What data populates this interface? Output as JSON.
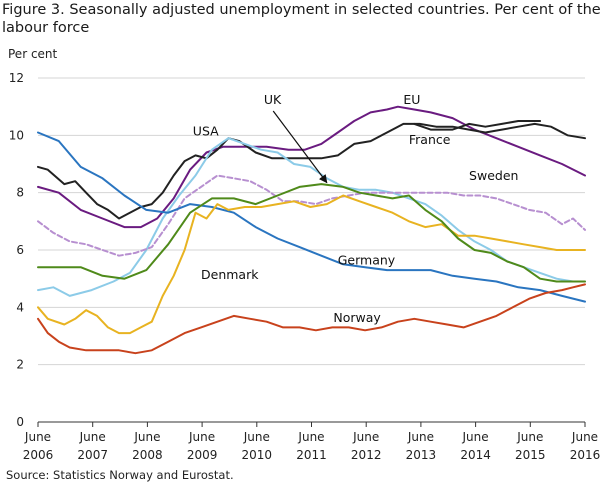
{
  "title": "Figure 3. Seasonally adjusted unemployment in selected countries. Per cent of the labour force",
  "source": "Source: Statistics Norway and Eurostat.",
  "chart_data": {
    "type": "line",
    "ylabel": "Per cent",
    "ylim": [
      0,
      12
    ],
    "yticks": [
      0,
      2,
      4,
      6,
      8,
      10,
      12
    ],
    "xlim": [
      2006.42,
      2016.42
    ],
    "xticks": [
      {
        "x": 2006.42,
        "month": "June",
        "year": "2006"
      },
      {
        "x": 2007.42,
        "month": "June",
        "year": "2007"
      },
      {
        "x": 2008.42,
        "month": "June",
        "year": "2008"
      },
      {
        "x": 2009.42,
        "month": "June",
        "year": "2009"
      },
      {
        "x": 2010.42,
        "month": "June",
        "year": "2010"
      },
      {
        "x": 2011.42,
        "month": "June",
        "year": "2011"
      },
      {
        "x": 2012.42,
        "month": "June",
        "year": "2012"
      },
      {
        "x": 2013.42,
        "month": "June",
        "year": "2013"
      },
      {
        "x": 2014.42,
        "month": "June",
        "year": "2014"
      },
      {
        "x": 2015.42,
        "month": "June",
        "year": "2015"
      },
      {
        "x": 2016.42,
        "month": "June",
        "year": "2016"
      }
    ],
    "grid": "horizontal",
    "series": [
      {
        "name": "EU",
        "color": "#6a1b80",
        "dashed": false,
        "x": [
          2006.42,
          2006.8,
          2007.2,
          2007.6,
          2008.0,
          2008.3,
          2008.6,
          2008.9,
          2009.2,
          2009.5,
          2009.8,
          2010.2,
          2010.6,
          2011.0,
          2011.3,
          2011.6,
          2011.9,
          2012.2,
          2012.5,
          2012.8,
          2013.0,
          2013.3,
          2013.6,
          2014.0,
          2014.4,
          2014.8,
          2015.2,
          2015.6,
          2016.0,
          2016.42
        ],
        "y": [
          8.2,
          8.0,
          7.4,
          7.1,
          6.8,
          6.8,
          7.1,
          7.8,
          8.8,
          9.4,
          9.6,
          9.6,
          9.6,
          9.5,
          9.5,
          9.7,
          10.1,
          10.5,
          10.8,
          10.9,
          11.0,
          10.9,
          10.8,
          10.6,
          10.2,
          9.9,
          9.6,
          9.3,
          9.0,
          8.6
        ]
      },
      {
        "name": "USA",
        "color": "#222222",
        "dashed": false,
        "x": [
          2006.42,
          2006.6,
          2006.9,
          2007.1,
          2007.3,
          2007.5,
          2007.7,
          2007.9,
          2008.1,
          2008.3,
          2008.5,
          2008.7,
          2008.9,
          2009.1,
          2009.3,
          2009.5,
          2009.7,
          2009.9,
          2010.1,
          2010.4,
          2010.7,
          2011.0,
          2011.3,
          2011.6,
          2011.9,
          2012.2,
          2012.5,
          2012.8,
          2013.1,
          2013.4,
          2013.7,
          2014.0,
          2014.3,
          2014.6,
          2014.9,
          2015.2,
          2015.5,
          2015.8,
          2016.1,
          2016.42
        ],
        "y": [
          8.9,
          8.8,
          8.3,
          8.4,
          8.0,
          7.6,
          7.4,
          7.1,
          7.3,
          7.5,
          7.6,
          8.0,
          8.6,
          9.1,
          9.3,
          9.2,
          9.5,
          9.9,
          9.8,
          9.4,
          9.2,
          9.2,
          9.2,
          9.2,
          9.3,
          9.7,
          9.8,
          10.1,
          10.4,
          10.4,
          10.3,
          10.3,
          10.2,
          10.1,
          10.2,
          10.3,
          10.4,
          10.3,
          10.0,
          9.9
        ]
      },
      {
        "name": "France",
        "color": "#222222",
        "dashed": false,
        "x": [
          2013.3,
          2013.6,
          2014.0,
          2014.3,
          2014.6,
          2014.9,
          2015.2,
          2015.6
        ],
        "y": [
          10.4,
          10.2,
          10.2,
          10.4,
          10.3,
          10.4,
          10.5,
          10.5
        ]
      },
      {
        "name": "UK",
        "color": "#8ccbe8",
        "dashed": false,
        "x": [
          2006.42,
          2006.7,
          2007.0,
          2007.4,
          2007.8,
          2008.1,
          2008.4,
          2008.7,
          2009.0,
          2009.3,
          2009.6,
          2009.9,
          2010.2,
          2010.5,
          2010.8,
          2011.1,
          2011.4,
          2011.7,
          2012.0,
          2012.3,
          2012.6,
          2012.9,
          2013.2,
          2013.5,
          2013.8,
          2014.1,
          2014.4,
          2014.7,
          2015.0,
          2015.3,
          2015.6,
          2015.9,
          2016.2,
          2016.42
        ],
        "y": [
          4.6,
          4.7,
          4.4,
          4.6,
          4.9,
          5.2,
          6.0,
          7.1,
          7.9,
          8.6,
          9.5,
          9.9,
          9.7,
          9.5,
          9.4,
          9.0,
          8.9,
          8.5,
          8.2,
          8.1,
          8.1,
          8.0,
          7.8,
          7.6,
          7.2,
          6.7,
          6.3,
          6.0,
          5.6,
          5.4,
          5.2,
          5.0,
          4.9,
          4.9
        ]
      },
      {
        "name": "Sweden",
        "color": "#b78fd0",
        "dashed": true,
        "x": [
          2006.42,
          2006.7,
          2007.0,
          2007.3,
          2007.6,
          2007.9,
          2008.2,
          2008.5,
          2008.8,
          2009.1,
          2009.4,
          2009.7,
          2010.0,
          2010.3,
          2010.6,
          2010.9,
          2011.2,
          2011.5,
          2011.8,
          2012.1,
          2012.4,
          2012.7,
          2013.0,
          2013.3,
          2013.6,
          2013.9,
          2014.2,
          2014.5,
          2014.8,
          2015.1,
          2015.4,
          2015.7,
          2016.0,
          2016.2,
          2016.42
        ],
        "y": [
          7.0,
          6.6,
          6.3,
          6.2,
          6.0,
          5.8,
          5.9,
          6.1,
          6.9,
          7.8,
          8.2,
          8.6,
          8.5,
          8.4,
          8.1,
          7.7,
          7.7,
          7.6,
          7.8,
          7.9,
          8.0,
          8.0,
          8.0,
          8.0,
          8.0,
          8.0,
          7.9,
          7.9,
          7.8,
          7.6,
          7.4,
          7.3,
          6.9,
          7.1,
          6.7
        ]
      },
      {
        "name": "Germany",
        "color": "#2a75c0",
        "dashed": false,
        "x": [
          2006.42,
          2006.8,
          2007.2,
          2007.6,
          2008.0,
          2008.4,
          2008.8,
          2009.2,
          2009.6,
          2010.0,
          2010.4,
          2010.8,
          2011.2,
          2011.6,
          2012.0,
          2012.4,
          2012.8,
          2013.2,
          2013.6,
          2014.0,
          2014.4,
          2014.8,
          2015.2,
          2015.6,
          2016.0,
          2016.42
        ],
        "y": [
          10.1,
          9.8,
          8.9,
          8.5,
          7.9,
          7.4,
          7.3,
          7.6,
          7.5,
          7.3,
          6.8,
          6.4,
          6.1,
          5.8,
          5.5,
          5.4,
          5.3,
          5.3,
          5.3,
          5.1,
          5.0,
          4.9,
          4.7,
          4.6,
          4.4,
          4.2
        ]
      },
      {
        "name": "Denmark",
        "color": "#e8b321",
        "dashed": false,
        "x": [
          2006.42,
          2006.6,
          2006.9,
          2007.1,
          2007.3,
          2007.5,
          2007.7,
          2007.9,
          2008.1,
          2008.3,
          2008.5,
          2008.7,
          2008.9,
          2009.1,
          2009.3,
          2009.5,
          2009.7,
          2009.9,
          2010.2,
          2010.5,
          2010.8,
          2011.1,
          2011.4,
          2011.7,
          2012.0,
          2012.3,
          2012.6,
          2012.9,
          2013.2,
          2013.5,
          2013.8,
          2014.1,
          2014.4,
          2014.7,
          2015.0,
          2015.3,
          2015.6,
          2015.9,
          2016.2,
          2016.42
        ],
        "y": [
          4.0,
          3.6,
          3.4,
          3.6,
          3.9,
          3.7,
          3.3,
          3.1,
          3.1,
          3.3,
          3.5,
          4.4,
          5.1,
          6.0,
          7.3,
          7.1,
          7.6,
          7.4,
          7.5,
          7.5,
          7.6,
          7.7,
          7.5,
          7.6,
          7.9,
          7.7,
          7.5,
          7.3,
          7.0,
          6.8,
          6.9,
          6.5,
          6.5,
          6.4,
          6.3,
          6.2,
          6.1,
          6.0,
          6.0,
          6.0
        ]
      },
      {
        "name": "",
        "color": "#4f8a1a",
        "dashed": false,
        "x": [
          2006.42,
          2006.8,
          2007.2,
          2007.6,
          2008.0,
          2008.4,
          2008.8,
          2009.2,
          2009.6,
          2010.0,
          2010.4,
          2010.8,
          2011.2,
          2011.6,
          2012.0,
          2012.3,
          2012.6,
          2012.9,
          2013.2,
          2013.5,
          2013.8,
          2014.1,
          2014.4,
          2014.7,
          2015.0,
          2015.3,
          2015.6,
          2015.9,
          2016.2,
          2016.42
        ],
        "y": [
          5.4,
          5.4,
          5.4,
          5.1,
          5.0,
          5.3,
          6.2,
          7.3,
          7.8,
          7.8,
          7.6,
          7.9,
          8.2,
          8.3,
          8.2,
          8.0,
          7.9,
          7.8,
          7.9,
          7.4,
          7.0,
          6.4,
          6.0,
          5.9,
          5.6,
          5.4,
          5.0,
          4.9,
          4.9,
          4.9
        ]
      },
      {
        "name": "Norway",
        "color": "#c8421c",
        "dashed": false,
        "x": [
          2006.42,
          2006.6,
          2006.8,
          2007.0,
          2007.3,
          2007.6,
          2007.9,
          2008.2,
          2008.5,
          2008.8,
          2009.1,
          2009.4,
          2009.7,
          2010.0,
          2010.3,
          2010.6,
          2010.9,
          2011.2,
          2011.5,
          2011.8,
          2012.1,
          2012.4,
          2012.7,
          2013.0,
          2013.3,
          2013.6,
          2013.9,
          2014.2,
          2014.5,
          2014.8,
          2015.1,
          2015.4,
          2015.7,
          2016.0,
          2016.2,
          2016.42
        ],
        "y": [
          3.6,
          3.1,
          2.8,
          2.6,
          2.5,
          2.5,
          2.5,
          2.4,
          2.5,
          2.8,
          3.1,
          3.3,
          3.5,
          3.7,
          3.6,
          3.5,
          3.3,
          3.3,
          3.2,
          3.3,
          3.3,
          3.2,
          3.3,
          3.5,
          3.6,
          3.5,
          3.4,
          3.3,
          3.5,
          3.7,
          4.0,
          4.3,
          4.5,
          4.6,
          4.7,
          4.8
        ]
      }
    ],
    "annotations": [
      {
        "text": "EU",
        "x": 2013.1,
        "y": 11.1
      },
      {
        "text": "USA",
        "x": 2009.25,
        "y": 10.0
      },
      {
        "text": "France",
        "x": 2013.2,
        "y": 9.7
      },
      {
        "text": "UK",
        "x": 2010.55,
        "y": 11.1
      },
      {
        "text": "Sweden",
        "x": 2014.3,
        "y": 8.45
      },
      {
        "text": "Germany",
        "x": 2011.9,
        "y": 5.5
      },
      {
        "text": "Denmark",
        "x": 2009.4,
        "y": 4.98
      },
      {
        "text": "Norway",
        "x": 2011.82,
        "y": 3.48
      }
    ],
    "arrow": {
      "from": [
        2010.72,
        10.85
      ],
      "to": [
        2011.7,
        8.35
      ]
    }
  }
}
